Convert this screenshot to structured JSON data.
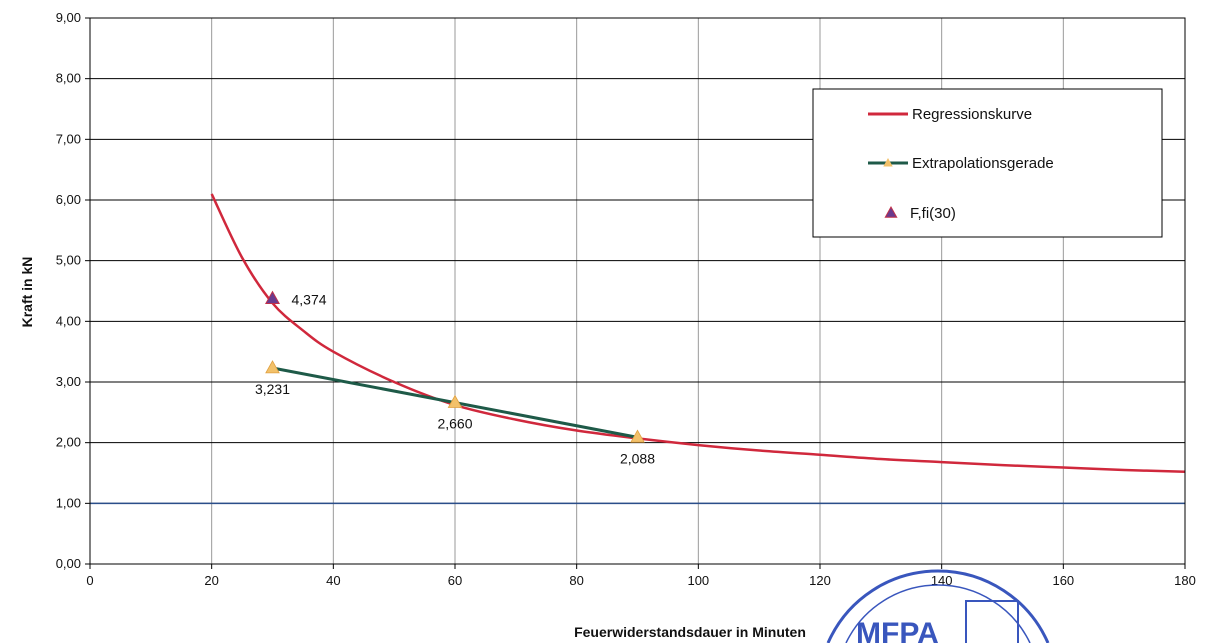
{
  "chart_data": {
    "type": "line",
    "xlabel": "Feuerwiderstandsdauer in Minuten",
    "ylabel": "Kraft in kN",
    "xlim": [
      0,
      180
    ],
    "ylim": [
      0,
      9
    ],
    "x_ticks": [
      "0",
      "20",
      "40",
      "60",
      "80",
      "100",
      "120",
      "140",
      "160",
      "180"
    ],
    "y_ticks": [
      "0,00",
      "1,00",
      "2,00",
      "3,00",
      "4,00",
      "5,00",
      "6,00",
      "7,00",
      "8,00",
      "9,00"
    ],
    "grid": true,
    "legend_position": "top-right",
    "series": [
      {
        "name": "Regressionskurve",
        "color": "#d0283c",
        "x": [
          20,
          25,
          30,
          35,
          40,
          50,
          60,
          70,
          80,
          90,
          100,
          110,
          120,
          130,
          140,
          150,
          160,
          170,
          180
        ],
        "y": [
          6.1,
          5.05,
          4.3,
          3.85,
          3.5,
          3.0,
          2.62,
          2.38,
          2.2,
          2.07,
          1.96,
          1.87,
          1.8,
          1.73,
          1.68,
          1.63,
          1.59,
          1.55,
          1.52
        ]
      },
      {
        "name": "Extrapolationsgerade",
        "color": "#1e5a48",
        "marker": "triangle",
        "marker_color": "#f2c16a",
        "x": [
          30,
          60,
          90
        ],
        "y": [
          3.231,
          2.66,
          2.088
        ],
        "labels": [
          "3,231",
          "2,660",
          "2,088"
        ]
      },
      {
        "name": "F,fi(30)",
        "marker": "triangle",
        "marker_color": "#6a3a8e",
        "x": [
          30
        ],
        "y": [
          4.374
        ],
        "labels": [
          "4,374"
        ]
      }
    ],
    "reference_line": {
      "y": 1.0,
      "color": "#2a4e8a"
    }
  },
  "stamp": {
    "text": "MFPA",
    "color": "#2948b8",
    "icon": "stamp-seal"
  }
}
